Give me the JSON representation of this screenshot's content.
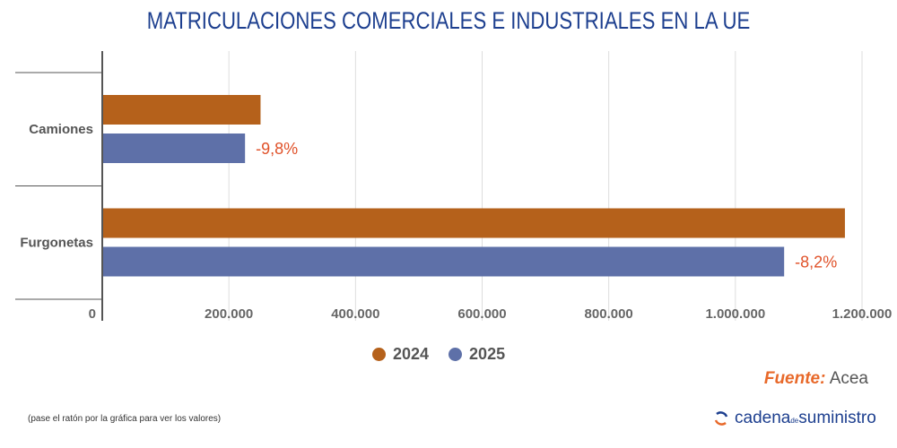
{
  "title": "MATRICULACIONES COMERCIALES E INDUSTRIALES EN LA UE",
  "chart_data": {
    "type": "bar",
    "orientation": "horizontal",
    "categories": [
      "Camiones",
      "Furgonetas"
    ],
    "series": [
      {
        "name": "2024",
        "color": "#b5611b",
        "values": [
          250000,
          1173000
        ]
      },
      {
        "name": "2025",
        "color": "#5e70a8",
        "values": [
          225500,
          1077000
        ]
      }
    ],
    "annotations": [
      "-9,8%",
      "-8,2%"
    ],
    "annotation_color": "#e0522a",
    "xlim": [
      0,
      1200000
    ],
    "xticks": [
      0,
      200000,
      400000,
      600000,
      800000,
      1000000,
      1200000
    ],
    "xtick_labels": [
      "0",
      "200.000",
      "400.000",
      "600.000",
      "800.000",
      "1.000.000",
      "1.200.000"
    ],
    "grid": true,
    "legend": "bottom"
  },
  "source_label": "Fuente:",
  "source_value": "Acea",
  "hint": "(pase el ratón por la gráfica para ver los valores)",
  "logo": {
    "part1": "cadena",
    "part2": "de",
    "part3": "suministro"
  }
}
